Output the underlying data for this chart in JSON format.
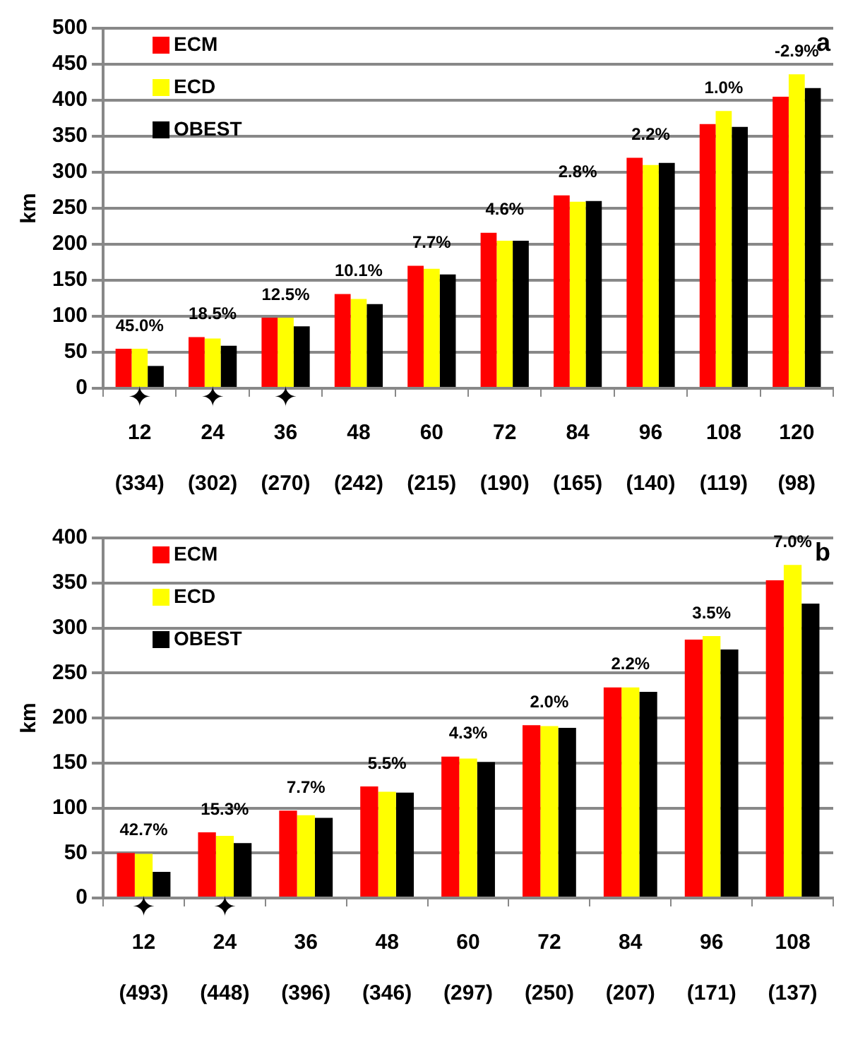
{
  "chart_data": [
    {
      "type": "bar",
      "title": "a",
      "ylabel": "km",
      "categories": [
        "12\n(334)",
        "24\n(302)",
        "36\n(270)",
        "48\n(242)",
        "60\n(215)",
        "72\n(190)",
        "84\n(165)",
        "96\n(140)",
        "108\n(119)",
        "120\n(98)"
      ],
      "series": [
        {
          "name": "ECM",
          "color": "#ff0000",
          "values": [
            55,
            71,
            98,
            131,
            170,
            216,
            268,
            320,
            367,
            405
          ]
        },
        {
          "name": "ECD",
          "color": "#ffff00",
          "values": [
            55,
            69,
            98,
            124,
            166,
            205,
            259,
            310,
            385,
            436
          ]
        },
        {
          "name": "OBEST",
          "color": "#000000",
          "values": [
            31,
            59,
            86,
            117,
            158,
            205,
            260,
            313,
            363,
            417
          ]
        }
      ],
      "ylim": [
        0,
        500
      ],
      "yticks": [
        0,
        50,
        100,
        150,
        200,
        250,
        300,
        350,
        400,
        450,
        500
      ],
      "grid": "y",
      "legend": "top left",
      "annotations": [
        "45.0%",
        "18.5%",
        "12.5%",
        "10.1%",
        "7.7%",
        "4.6%",
        "2.8%",
        "2.2%",
        "1.0%",
        "-2.9%",
        {
          "text": "✦",
          "x": "12\n(334)",
          "y": 0
        },
        {
          "text": "✦",
          "x": "24\n(302)",
          "y": 0
        },
        {
          "text": "✦",
          "x": "36\n(270)",
          "y": 0
        }
      ]
    },
    {
      "type": "bar",
      "title": "b",
      "ylabel": "km",
      "categories": [
        "12\n(493)",
        "24\n(448)",
        "36\n(396)",
        "48\n(346)",
        "60\n(297)",
        "72\n(250)",
        "84\n(207)",
        "96\n(171)",
        "108\n(137)"
      ],
      "series": [
        {
          "name": "ECM",
          "color": "#ff0000",
          "values": [
            50,
            73,
            97,
            124,
            157,
            192,
            234,
            287,
            353
          ]
        },
        {
          "name": "ECD",
          "color": "#ffff00",
          "values": [
            49,
            69,
            92,
            118,
            155,
            191,
            234,
            291,
            370
          ]
        },
        {
          "name": "OBEST",
          "color": "#000000",
          "values": [
            29,
            61,
            89,
            117,
            151,
            189,
            229,
            276,
            327
          ]
        }
      ],
      "ylim": [
        0,
        400
      ],
      "yticks": [
        0,
        50,
        100,
        150,
        200,
        250,
        300,
        350,
        400
      ],
      "grid": "y",
      "legend": "top left",
      "annotations": [
        "42.7%",
        "15.3%",
        "7.7%",
        "5.5%",
        "4.3%",
        "2.0%",
        "2.2%",
        "3.5%",
        "7.0%",
        {
          "text": "✦",
          "x": "12\n(493)",
          "y": 0
        },
        {
          "text": "✦",
          "x": "24\n(448)",
          "y": 0
        }
      ]
    }
  ]
}
